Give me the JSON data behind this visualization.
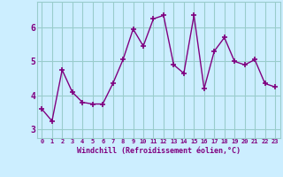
{
  "x": [
    0,
    1,
    2,
    3,
    4,
    5,
    6,
    7,
    8,
    9,
    10,
    11,
    12,
    13,
    14,
    15,
    16,
    17,
    18,
    19,
    20,
    21,
    22,
    23
  ],
  "y": [
    3.6,
    3.25,
    4.75,
    4.1,
    3.8,
    3.75,
    3.75,
    4.35,
    5.05,
    5.95,
    5.45,
    6.25,
    6.35,
    4.9,
    4.65,
    6.35,
    4.2,
    5.3,
    5.7,
    5.0,
    4.9,
    5.05,
    4.35,
    4.25
  ],
  "line_color": "#800080",
  "marker": "+",
  "markersize": 4,
  "markeredgewidth": 1.2,
  "linewidth": 1,
  "bg_color": "#cceeff",
  "grid_color": "#99cccc",
  "xlabel": "Windchill (Refroidissement éolien,°C)",
  "xlabel_color": "#800080",
  "tick_color": "#800080",
  "xlim": [
    -0.5,
    23.5
  ],
  "ylim": [
    2.75,
    6.75
  ],
  "yticks": [
    3,
    4,
    5,
    6
  ],
  "xtick_labels": [
    "0",
    "1",
    "2",
    "3",
    "4",
    "5",
    "6",
    "7",
    "8",
    "9",
    "10",
    "11",
    "12",
    "13",
    "14",
    "15",
    "16",
    "17",
    "18",
    "19",
    "20",
    "21",
    "22",
    "23"
  ]
}
